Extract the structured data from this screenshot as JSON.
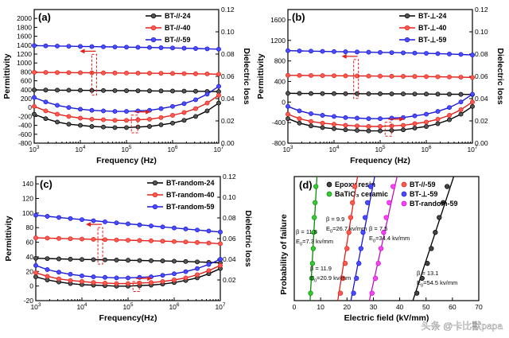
{
  "watermark": "头条 @卡比獸papa",
  "chart_data": [
    {
      "type": "line",
      "panel_label": "(a)",
      "xlabel": "Frequency (Hz)",
      "ylabel": "Permittivity",
      "ylabel_right": "Dielectric loss",
      "x_scale": "log",
      "x_ticks": [
        {
          "value": 1000,
          "base": "10",
          "exp": "3"
        },
        {
          "value": 10000,
          "base": "10",
          "exp": "4"
        },
        {
          "value": 100000,
          "base": "10",
          "exp": "5"
        },
        {
          "value": 1000000,
          "base": "10",
          "exp": "6"
        },
        {
          "value": 10000000,
          "base": "10",
          "exp": "7"
        }
      ],
      "ylim": [
        -800,
        2200
      ],
      "y_ticks": [
        "-800",
        "-600",
        "-400",
        "-200",
        "0",
        "200",
        "400",
        "600",
        "800",
        "1000",
        "1200",
        "1400",
        "1600",
        "1800",
        "2000"
      ],
      "y2lim": [
        0,
        0.12
      ],
      "y2_ticks": [
        "0.00",
        "0.02",
        "0.04",
        "0.06",
        "0.08",
        "0.10",
        "0.12"
      ],
      "arrow_freq": 20000,
      "series": [
        {
          "name": "BT-//-24",
          "color": "#000000",
          "fill": "#555555",
          "permittivity": [
            395,
            392,
            390,
            388,
            386,
            384,
            382,
            380,
            378,
            376,
            374,
            372,
            370,
            368,
            365,
            362,
            358
          ],
          "loss": [
            0.026,
            0.022,
            0.019,
            0.017,
            0.016,
            0.015,
            0.0145,
            0.014,
            0.014,
            0.0145,
            0.015,
            0.0165,
            0.018,
            0.0205,
            0.024,
            0.029,
            0.036
          ]
        },
        {
          "name": "BT-//-40",
          "color": "#e0201b",
          "fill": "#ff5a50",
          "permittivity": [
            790,
            788,
            786,
            784,
            782,
            780,
            778,
            776,
            774,
            772,
            770,
            768,
            765,
            762,
            758,
            754,
            748
          ],
          "loss": [
            0.033,
            0.029,
            0.026,
            0.024,
            0.0225,
            0.0215,
            0.021,
            0.0205,
            0.0205,
            0.021,
            0.0215,
            0.023,
            0.025,
            0.0275,
            0.031,
            0.036,
            0.043
          ]
        },
        {
          "name": "BT-//-59",
          "color": "#1a1ad6",
          "fill": "#4b4bff",
          "permittivity": [
            1390,
            1385,
            1380,
            1376,
            1372,
            1368,
            1364,
            1360,
            1356,
            1352,
            1348,
            1343,
            1338,
            1332,
            1325,
            1318,
            1310
          ],
          "loss": [
            0.041,
            0.037,
            0.034,
            0.032,
            0.0305,
            0.0295,
            0.029,
            0.0285,
            0.0285,
            0.029,
            0.0295,
            0.031,
            0.033,
            0.0355,
            0.039,
            0.044,
            0.051
          ]
        }
      ]
    },
    {
      "type": "line",
      "panel_label": "(b)",
      "xlabel": "Frequency (Hz)",
      "ylabel": "Permittivity",
      "ylabel_right": "Dielectric loss",
      "x_scale": "log",
      "x_ticks": [
        {
          "value": 1000,
          "base": "10",
          "exp": "3"
        },
        {
          "value": 10000,
          "base": "10",
          "exp": "4"
        },
        {
          "value": 100000,
          "base": "10",
          "exp": "5"
        },
        {
          "value": 1000000,
          "base": "10",
          "exp": "6"
        },
        {
          "value": 10000000,
          "base": "10",
          "exp": "7"
        }
      ],
      "ylim": [
        -800,
        1800
      ],
      "y_ticks": [
        "-800",
        "-400",
        "0",
        "400",
        "800",
        "1200",
        "1600"
      ],
      "y2lim": [
        0,
        0.12
      ],
      "y2_ticks": [
        "0.00",
        "0.02",
        "0.04",
        "0.06",
        "0.08",
        "0.10",
        "0.12"
      ],
      "arrow_freq": 30000,
      "series": [
        {
          "name": "BT-⊥-24",
          "color": "#000000",
          "fill": "#555555",
          "permittivity": [
            170,
            168,
            166,
            165,
            164,
            163,
            162,
            161,
            160,
            159,
            158,
            157,
            156,
            154,
            152,
            150,
            147
          ],
          "loss": [
            0.022,
            0.018,
            0.0155,
            0.014,
            0.013,
            0.012,
            0.0115,
            0.011,
            0.011,
            0.0115,
            0.012,
            0.0135,
            0.015,
            0.0175,
            0.021,
            0.026,
            0.033
          ]
        },
        {
          "name": "BT-⊥-40",
          "color": "#e0201b",
          "fill": "#ff5a50",
          "permittivity": [
            520,
            518,
            516,
            514,
            512,
            510,
            508,
            506,
            504,
            502,
            500,
            498,
            495,
            492,
            488,
            484,
            478
          ],
          "loss": [
            0.026,
            0.022,
            0.0195,
            0.018,
            0.017,
            0.016,
            0.0155,
            0.015,
            0.015,
            0.0155,
            0.016,
            0.0175,
            0.019,
            0.0215,
            0.025,
            0.03,
            0.037
          ]
        },
        {
          "name": "BT-⊥-59",
          "color": "#1a1ad6",
          "fill": "#4b4bff",
          "permittivity": [
            1000,
            995,
            990,
            986,
            982,
            978,
            974,
            970,
            966,
            962,
            958,
            954,
            948,
            942,
            935,
            926,
            916
          ],
          "loss": [
            0.033,
            0.029,
            0.0265,
            0.025,
            0.024,
            0.023,
            0.0225,
            0.022,
            0.022,
            0.0225,
            0.023,
            0.0245,
            0.026,
            0.0285,
            0.032,
            0.037,
            0.044
          ]
        }
      ]
    },
    {
      "type": "line",
      "panel_label": "(c)",
      "xlabel": "Frequency(Hz)",
      "ylabel": "Permittivity",
      "ylabel_right": "Dielectric loss",
      "x_scale": "log",
      "x_ticks": [
        {
          "value": 1000,
          "base": "10",
          "exp": "3"
        },
        {
          "value": 10000,
          "base": "10",
          "exp": "4"
        },
        {
          "value": 100000,
          "base": "10",
          "exp": "5"
        },
        {
          "value": 1000000,
          "base": "10",
          "exp": "6"
        },
        {
          "value": 10000000,
          "base": "10",
          "exp": "7"
        }
      ],
      "ylim": [
        -20,
        150
      ],
      "y_ticks": [
        "-20",
        "0",
        "20",
        "40",
        "60",
        "80",
        "100",
        "120",
        "140"
      ],
      "y2lim": [
        0,
        0.12
      ],
      "y2_ticks": [
        "0.02",
        "0.04",
        "0.06",
        "0.08",
        "0.10",
        "0.12"
      ],
      "arrow_freq": 25000,
      "series": [
        {
          "name": "BT-random-24",
          "color": "#000000",
          "fill": "#555555",
          "permittivity": [
            38,
            37.6,
            37.2,
            36.8,
            36.5,
            36.2,
            35.9,
            35.6,
            35.3,
            35.0,
            34.7,
            34.4,
            34.0,
            33.6,
            33.1,
            32.5,
            31.8
          ],
          "loss": [
            0.023,
            0.02,
            0.018,
            0.0165,
            0.0155,
            0.015,
            0.0145,
            0.014,
            0.014,
            0.0145,
            0.015,
            0.016,
            0.0175,
            0.0195,
            0.022,
            0.026,
            0.031
          ]
        },
        {
          "name": "BT-random-40",
          "color": "#e0201b",
          "fill": "#ff5a50",
          "permittivity": [
            66,
            65.6,
            65.2,
            64.8,
            64.4,
            64.0,
            63.6,
            63.2,
            62.8,
            62.4,
            62.0,
            61.5,
            61.0,
            60.4,
            59.7,
            58.9,
            58.0
          ],
          "loss": [
            0.027,
            0.0235,
            0.021,
            0.0195,
            0.0185,
            0.0175,
            0.017,
            0.0165,
            0.0165,
            0.017,
            0.0175,
            0.0185,
            0.02,
            0.022,
            0.025,
            0.029,
            0.034
          ]
        },
        {
          "name": "BT-random-59",
          "color": "#1a1ad6",
          "fill": "#4b4bff",
          "permittivity": [
            97,
            95.5,
            94,
            92.5,
            91,
            89.5,
            88,
            86.6,
            85.2,
            83.8,
            82.4,
            81.0,
            79.6,
            78.2,
            76.8,
            75.4,
            74.0
          ],
          "loss": [
            0.034,
            0.03,
            0.0275,
            0.0255,
            0.024,
            0.023,
            0.0225,
            0.022,
            0.022,
            0.0225,
            0.023,
            0.0245,
            0.026,
            0.028,
            0.031,
            0.035,
            0.04
          ]
        }
      ]
    },
    {
      "type": "scatter",
      "panel_label": "(d)",
      "xlabel": "Electric field (kV/mm)",
      "ylabel": "Probability of failure",
      "xlim": [
        0,
        70
      ],
      "x_ticks": [
        "0",
        "10",
        "20",
        "30",
        "40",
        "50",
        "60",
        "70"
      ],
      "ylim": [
        0,
        1
      ],
      "series": [
        {
          "name": "Epoxy resin",
          "color": "#000000",
          "fill": "#444444",
          "points": [
            [
              46.5,
              0.06
            ],
            [
              48.5,
              0.18
            ],
            [
              50.5,
              0.3
            ],
            [
              52,
              0.42
            ],
            [
              53.5,
              0.55
            ],
            [
              55,
              0.67
            ],
            [
              56.5,
              0.79
            ],
            [
              58,
              0.92
            ]
          ],
          "fit": [
            [
              45,
              0.0
            ],
            [
              60.5,
              1.0
            ]
          ],
          "beta": "β = 13.1",
          "e0": "E",
          "e0_sub": "0",
          "e0_val": "=54.5 kv/mm"
        },
        {
          "name": "BaTiO₃ ceramic",
          "color": "#0a8a0a",
          "fill": "#33cc33",
          "points": [
            [
              6.2,
              0.06
            ],
            [
              6.6,
              0.18
            ],
            [
              6.9,
              0.3
            ],
            [
              7.2,
              0.42
            ],
            [
              7.4,
              0.55
            ],
            [
              7.6,
              0.67
            ],
            [
              7.9,
              0.79
            ],
            [
              8.2,
              0.92
            ]
          ],
          "fit": [
            [
              6.0,
              0.0
            ],
            [
              8.6,
              1.0
            ]
          ],
          "beta": "β = 11.8",
          "e0": "E",
          "e0_sub": "0",
          "e0_val": "=7.3 kv/mm"
        },
        {
          "name": "BT-//-59",
          "color": "#e0201b",
          "fill": "#ff5a50",
          "points": [
            [
              17.5,
              0.06
            ],
            [
              18.5,
              0.18
            ],
            [
              19.3,
              0.3
            ],
            [
              20,
              0.42
            ],
            [
              20.7,
              0.55
            ],
            [
              21.4,
              0.67
            ],
            [
              22.1,
              0.79
            ],
            [
              23,
              0.92
            ]
          ],
          "fit": [
            [
              16.5,
              0.0
            ],
            [
              24,
              1.0
            ]
          ],
          "beta": "β = 11.9",
          "e0": "E",
          "e0_sub": "0",
          "e0_val": "=20.9 kv/mm"
        },
        {
          "name": "BT-⊥-59",
          "color": "#1a1ad6",
          "fill": "#4b4bff",
          "points": [
            [
              22.5,
              0.06
            ],
            [
              23.6,
              0.18
            ],
            [
              24.5,
              0.3
            ],
            [
              25.3,
              0.42
            ],
            [
              26.1,
              0.55
            ],
            [
              26.9,
              0.67
            ],
            [
              27.8,
              0.79
            ],
            [
              29,
              0.92
            ]
          ],
          "fit": [
            [
              21.5,
              0.0
            ],
            [
              30.5,
              1.0
            ]
          ],
          "beta": "β = 9.9",
          "e0": "E",
          "e0_sub": "0",
          "e0_val": "=26.7 kv/mm"
        },
        {
          "name": "BT-random-59",
          "color": "#c010c0",
          "fill": "#ff40ff",
          "points": [
            [
              29.5,
              0.06
            ],
            [
              30.8,
              0.18
            ],
            [
              31.9,
              0.3
            ],
            [
              32.9,
              0.42
            ],
            [
              33.9,
              0.55
            ],
            [
              34.9,
              0.67
            ],
            [
              36,
              0.79
            ],
            [
              37.5,
              0.92
            ]
          ],
          "fit": [
            [
              28.5,
              0.0
            ],
            [
              39,
              1.0
            ]
          ],
          "beta": "β = 7.5",
          "e0": "E",
          "e0_sub": "0",
          "e0_val": "=34.4 kv/mm"
        }
      ]
    }
  ]
}
